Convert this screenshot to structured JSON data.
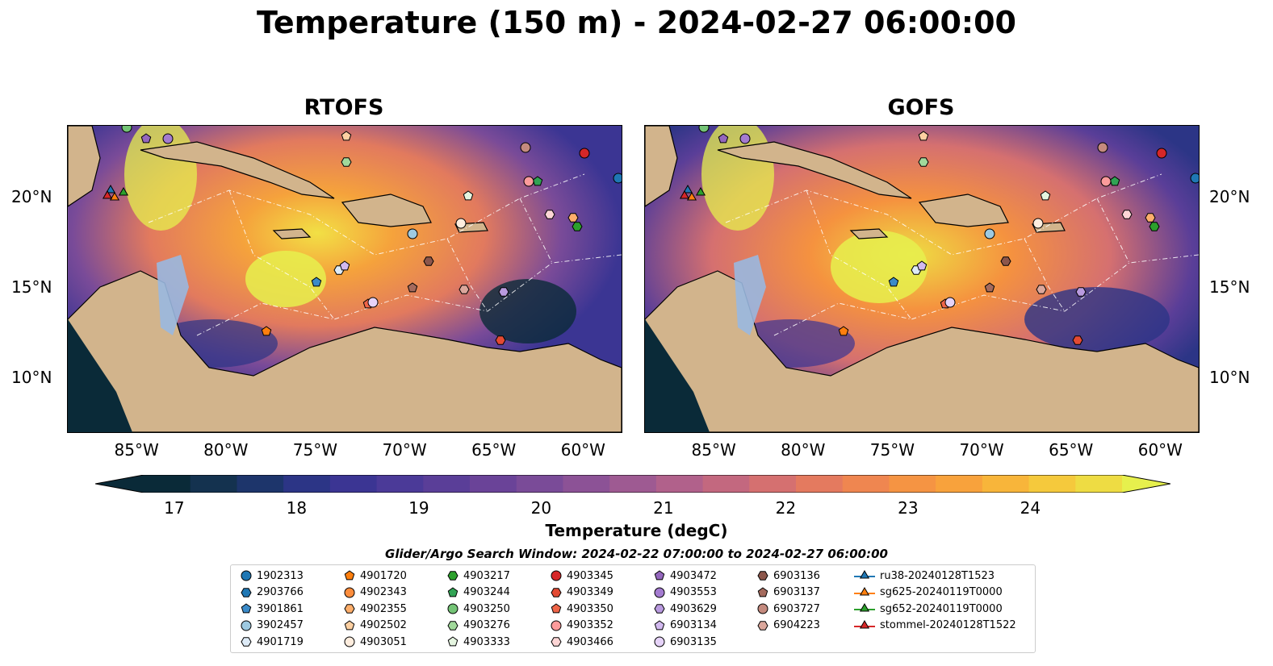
{
  "title": "Temperature (150 m) - 2024-02-27 06:00:00",
  "panels": [
    {
      "name": "RTOFS"
    },
    {
      "name": "GOFS"
    }
  ],
  "axes": {
    "lon_ticks": [
      "85°W",
      "80°W",
      "75°W",
      "70°W",
      "65°W",
      "60°W"
    ],
    "lat_ticks": [
      "20°N",
      "15°N",
      "10°N"
    ],
    "lon_range": [
      -89,
      -58
    ],
    "lat_range": [
      7,
      24
    ]
  },
  "colorbar": {
    "ticks": [
      "17",
      "18",
      "19",
      "20",
      "21",
      "22",
      "23",
      "24"
    ],
    "range": [
      16.75,
      24.75
    ],
    "label": "Temperature (degC)",
    "colors": [
      "#0a2a38",
      "#14324f",
      "#1d356b",
      "#2c3586",
      "#3b3593",
      "#4b3a98",
      "#5a3e98",
      "#6a4398",
      "#7a4b98",
      "#8c5296",
      "#9e5a92",
      "#b1618b",
      "#c3687f",
      "#d57070",
      "#e47a5f",
      "#ef8650",
      "#f59443",
      "#f8a23c",
      "#f8b53a",
      "#f5c93c",
      "#eedc43",
      "#e6f04d"
    ]
  },
  "search_window": "Glider/Argo Search Window: 2024-02-22 07:00:00 to 2024-02-27 06:00:00",
  "legend": [
    {
      "label": "1902313",
      "marker": "circle",
      "color": "#1f77b4"
    },
    {
      "label": "2903766",
      "marker": "hexagon",
      "color": "#1f77b4"
    },
    {
      "label": "3901861",
      "marker": "pentagon",
      "color": "#3b8bc9"
    },
    {
      "label": "3902457",
      "marker": "circle",
      "color": "#9ecae1"
    },
    {
      "label": "4901719",
      "marker": "hexagon",
      "color": "#deebf7"
    },
    {
      "label": "4901720",
      "marker": "pentagon",
      "color": "#ff7f0e"
    },
    {
      "label": "4902343",
      "marker": "circle",
      "color": "#fd8d3c"
    },
    {
      "label": "4902355",
      "marker": "hexagon",
      "color": "#fdae6b"
    },
    {
      "label": "4902502",
      "marker": "pentagon",
      "color": "#fdd0a2"
    },
    {
      "label": "4903051",
      "marker": "circle",
      "color": "#feedde"
    },
    {
      "label": "4903217",
      "marker": "hexagon",
      "color": "#2ca02c"
    },
    {
      "label": "4903244",
      "marker": "pentagon",
      "color": "#31a354"
    },
    {
      "label": "4903250",
      "marker": "circle",
      "color": "#74c476"
    },
    {
      "label": "4903276",
      "marker": "hexagon",
      "color": "#a1d99b"
    },
    {
      "label": "4903333",
      "marker": "pentagon",
      "color": "#e5f5e0"
    },
    {
      "label": "4903345",
      "marker": "circle",
      "color": "#d62728"
    },
    {
      "label": "4903349",
      "marker": "hexagon",
      "color": "#e34a33"
    },
    {
      "label": "4903350",
      "marker": "pentagon",
      "color": "#ef6548"
    },
    {
      "label": "4903352",
      "marker": "circle",
      "color": "#fc9b9b"
    },
    {
      "label": "4903466",
      "marker": "hexagon",
      "color": "#fcd5d5"
    },
    {
      "label": "4903472",
      "marker": "pentagon",
      "color": "#9467bd"
    },
    {
      "label": "4903553",
      "marker": "circle",
      "color": "#a47bd0"
    },
    {
      "label": "4903629",
      "marker": "hexagon",
      "color": "#b99adf"
    },
    {
      "label": "6903134",
      "marker": "pentagon",
      "color": "#d2b9ef"
    },
    {
      "label": "6903135",
      "marker": "circle",
      "color": "#e6d3f8"
    },
    {
      "label": "6903136",
      "marker": "hexagon",
      "color": "#8c564b"
    },
    {
      "label": "6903137",
      "marker": "pentagon",
      "color": "#a46a5d"
    },
    {
      "label": "6903727",
      "marker": "circle",
      "color": "#c48a7e"
    },
    {
      "label": "6904223",
      "marker": "hexagon",
      "color": "#dba79c"
    },
    {
      "label": "ru38-20240128T1523",
      "marker": "triangle",
      "color": "#1f77b4"
    },
    {
      "label": "sg625-20240119T0000",
      "marker": "triangle",
      "color": "#ff7f0e"
    },
    {
      "label": "sg652-20240119T0000",
      "marker": "triangle",
      "color": "#2ca02c"
    },
    {
      "label": "stommel-20240128T1522",
      "marker": "triangle",
      "color": "#d62728"
    }
  ],
  "floats": [
    {
      "id": "1902313",
      "lon": -58.2,
      "lat": 21.1
    },
    {
      "id": "3901861",
      "lon": -75.1,
      "lat": 15.3
    },
    {
      "id": "3902457",
      "lon": -69.7,
      "lat": 18.0
    },
    {
      "id": "4901719",
      "lon": -73.8,
      "lat": 16.0
    },
    {
      "id": "4901720",
      "lon": -77.9,
      "lat": 12.6
    },
    {
      "id": "4902355",
      "lon": -60.7,
      "lat": 18.9
    },
    {
      "id": "4902502",
      "lon": -73.4,
      "lat": 23.4
    },
    {
      "id": "4903051",
      "lon": -67.0,
      "lat": 18.6
    },
    {
      "id": "4903217",
      "lon": -60.5,
      "lat": 18.4
    },
    {
      "id": "4903244",
      "lon": -62.7,
      "lat": 20.9
    },
    {
      "id": "4903250",
      "lon": -85.7,
      "lat": 23.9
    },
    {
      "id": "4903276",
      "lon": -73.4,
      "lat": 22.0
    },
    {
      "id": "4903333",
      "lon": -66.6,
      "lat": 20.1
    },
    {
      "id": "4903345",
      "lon": -60.1,
      "lat": 22.5
    },
    {
      "id": "4903349",
      "lon": -64.8,
      "lat": 12.1
    },
    {
      "id": "4903350",
      "lon": -72.2,
      "lat": 14.1
    },
    {
      "id": "4903352",
      "lon": -63.2,
      "lat": 20.9
    },
    {
      "id": "4903466",
      "lon": -62.0,
      "lat": 19.1
    },
    {
      "id": "4903472",
      "lon": -84.6,
      "lat": 23.3
    },
    {
      "id": "4903553",
      "lon": -83.4,
      "lat": 23.3
    },
    {
      "id": "6903134",
      "lon": -73.5,
      "lat": 16.2
    },
    {
      "id": "6903135",
      "lon": -71.9,
      "lat": 14.2
    },
    {
      "id": "6903136",
      "lon": -68.8,
      "lat": 16.5
    },
    {
      "id": "6903137",
      "lon": -69.7,
      "lat": 15.0
    },
    {
      "id": "6903727",
      "lon": -63.4,
      "lat": 22.8
    },
    {
      "id": "6904223",
      "lon": -66.8,
      "lat": 14.9
    },
    {
      "id": "4903629",
      "lon": -64.6,
      "lat": 14.8
    }
  ],
  "gliders": [
    {
      "id": "ru38-20240128T1523",
      "lon": -86.6,
      "lat": 20.4
    },
    {
      "id": "sg625-20240119T0000",
      "lon": -86.4,
      "lat": 20.0
    },
    {
      "id": "sg652-20240119T0000",
      "lon": -85.9,
      "lat": 20.3
    },
    {
      "id": "stommel-20240128T1522",
      "lon": -86.8,
      "lat": 20.1
    }
  ]
}
